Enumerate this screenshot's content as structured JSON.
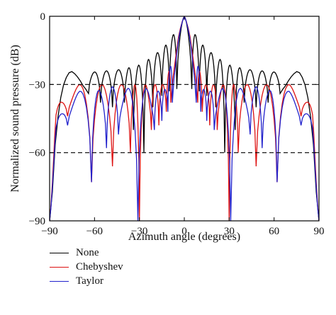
{
  "chart_data": {
    "type": "line",
    "xlabel": "Azimuth angle (degrees)",
    "ylabel": "Normalized sound pressure (dB)",
    "xlim": [
      -90,
      90
    ],
    "ylim": [
      -90,
      0
    ],
    "xticks": [
      -90,
      -60,
      -30,
      0,
      30,
      60,
      90
    ],
    "yticks": [
      0,
      -30,
      -60,
      -90
    ],
    "xtick_labels": [
      "−90",
      "−60",
      "−30",
      "0",
      "30",
      "60",
      "90"
    ],
    "ytick_labels": [
      "0",
      "−30",
      "−60",
      "−90"
    ],
    "reference_lines": [
      -30,
      -60
    ],
    "grid": false,
    "legend_position": "below",
    "series": [
      {
        "name": "None",
        "color": "#000000",
        "envelope": [
          [
            -90,
            -90
          ],
          [
            -86,
            -38
          ],
          [
            -82,
            -29
          ],
          [
            -76,
            -24
          ],
          [
            -70,
            -23
          ],
          [
            -64,
            -25
          ],
          [
            -56,
            -24
          ],
          [
            -48,
            -24
          ],
          [
            -40,
            -23
          ],
          [
            -32,
            -22
          ],
          [
            -26,
            -20
          ],
          [
            -20,
            -17
          ],
          [
            -14,
            -14
          ],
          [
            -8,
            -9
          ],
          [
            -4,
            -3
          ],
          [
            0,
            0
          ],
          [
            4,
            -3
          ],
          [
            8,
            -9
          ],
          [
            14,
            -14
          ],
          [
            20,
            -17
          ],
          [
            26,
            -20
          ],
          [
            32,
            -22
          ],
          [
            40,
            -23
          ],
          [
            48,
            -24
          ],
          [
            56,
            -24
          ],
          [
            64,
            -25
          ],
          [
            70,
            -23
          ],
          [
            76,
            -24
          ],
          [
            82,
            -29
          ],
          [
            86,
            -38
          ],
          [
            90,
            -90
          ]
        ],
        "nulls": [
          [
            -64,
            -34
          ],
          [
            -56,
            -38
          ],
          [
            -48,
            -40
          ],
          [
            -40,
            -38
          ],
          [
            -34,
            -50
          ],
          [
            -27,
            -60
          ],
          [
            -21,
            -40
          ],
          [
            -15,
            -35
          ],
          [
            -10,
            -33
          ],
          [
            -5,
            -32
          ],
          [
            5,
            -32
          ],
          [
            10,
            -33
          ],
          [
            15,
            -35
          ],
          [
            21,
            -40
          ],
          [
            27,
            -60
          ],
          [
            34,
            -50
          ],
          [
            40,
            -38
          ],
          [
            48,
            -40
          ],
          [
            56,
            -38
          ],
          [
            64,
            -34
          ]
        ]
      },
      {
        "name": "Chebyshev",
        "color": "#dd1111",
        "envelope": [
          [
            -90,
            -90
          ],
          [
            -86,
            -42
          ],
          [
            -80,
            -33
          ],
          [
            -70,
            -30
          ],
          [
            -60,
            -30
          ],
          [
            -50,
            -30
          ],
          [
            -40,
            -30
          ],
          [
            -30,
            -30
          ],
          [
            -20,
            -30
          ],
          [
            -12,
            -30
          ],
          [
            -8,
            -16
          ],
          [
            -4,
            -5
          ],
          [
            0,
            0
          ],
          [
            4,
            -5
          ],
          [
            8,
            -16
          ],
          [
            12,
            -30
          ],
          [
            20,
            -30
          ],
          [
            30,
            -30
          ],
          [
            40,
            -30
          ],
          [
            50,
            -30
          ],
          [
            60,
            -30
          ],
          [
            70,
            -30
          ],
          [
            80,
            -33
          ],
          [
            86,
            -42
          ],
          [
            90,
            -90
          ]
        ],
        "nulls": [
          [
            -78,
            -44
          ],
          [
            -62,
            -73
          ],
          [
            -48,
            -66
          ],
          [
            -36,
            -60
          ],
          [
            -30,
            -90
          ],
          [
            -22,
            -50
          ],
          [
            -17,
            -48
          ],
          [
            -12,
            -42
          ],
          [
            -9,
            -38
          ],
          [
            9,
            -38
          ],
          [
            12,
            -42
          ],
          [
            17,
            -48
          ],
          [
            22,
            -50
          ],
          [
            30,
            -90
          ],
          [
            36,
            -60
          ],
          [
            48,
            -66
          ],
          [
            62,
            -73
          ],
          [
            78,
            -44
          ]
        ]
      },
      {
        "name": "Taylor",
        "color": "#2222cc",
        "envelope": [
          [
            -90,
            -90
          ],
          [
            -86,
            -48
          ],
          [
            -80,
            -38
          ],
          [
            -70,
            -33
          ],
          [
            -62,
            -31
          ],
          [
            -56,
            -33
          ],
          [
            -48,
            -31
          ],
          [
            -40,
            -32
          ],
          [
            -32,
            -31
          ],
          [
            -24,
            -32
          ],
          [
            -18,
            -33
          ],
          [
            -12,
            -32
          ],
          [
            -8,
            -17
          ],
          [
            -4,
            -5
          ],
          [
            0,
            0
          ],
          [
            4,
            -5
          ],
          [
            8,
            -17
          ],
          [
            12,
            -32
          ],
          [
            18,
            -33
          ],
          [
            24,
            -32
          ],
          [
            32,
            -31
          ],
          [
            40,
            -32
          ],
          [
            48,
            -31
          ],
          [
            56,
            -33
          ],
          [
            62,
            -31
          ],
          [
            70,
            -33
          ],
          [
            80,
            -38
          ],
          [
            86,
            -48
          ],
          [
            90,
            -90
          ]
        ],
        "nulls": [
          [
            -78,
            -48
          ],
          [
            -62,
            -73
          ],
          [
            -52,
            -58
          ],
          [
            -44,
            -52
          ],
          [
            -31,
            -90
          ],
          [
            -20,
            -50
          ],
          [
            -15,
            -46
          ],
          [
            -11,
            -42
          ],
          [
            -8,
            -38
          ],
          [
            8,
            -38
          ],
          [
            11,
            -42
          ],
          [
            15,
            -46
          ],
          [
            20,
            -50
          ],
          [
            31,
            -90
          ],
          [
            44,
            -52
          ],
          [
            52,
            -58
          ],
          [
            62,
            -73
          ],
          [
            78,
            -48
          ]
        ]
      }
    ]
  }
}
